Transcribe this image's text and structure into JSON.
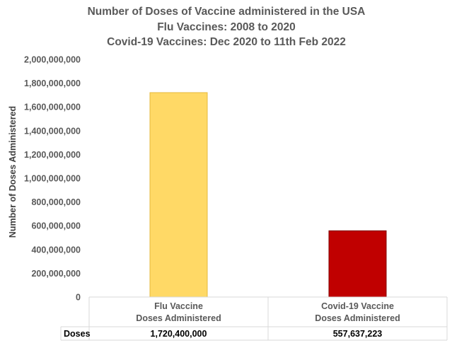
{
  "chart_data": {
    "type": "bar",
    "title_lines": [
      "Number of Doses of Vaccine administered in the USA",
      "Flu Vaccines: 2008 to 2020",
      "Covid-19 Vaccines: Dec 2020 to 11th Feb 2022"
    ],
    "ylabel": "Number of Doses Administered",
    "xlabel": "",
    "ylim": [
      0,
      2000000000
    ],
    "yticks": [
      0,
      200000000,
      400000000,
      600000000,
      800000000,
      1000000000,
      1200000000,
      1400000000,
      1600000000,
      1800000000,
      2000000000
    ],
    "ytick_labels": [
      "0",
      "200,000,000",
      "400,000,000",
      "600,000,000",
      "800,000,000",
      "1,000,000,000",
      "1,200,000,000",
      "1,400,000,000",
      "1,600,000,000",
      "1,800,000,000",
      "2,000,000,000"
    ],
    "categories": [
      [
        "Flu Vaccine",
        "Doses Administered"
      ],
      [
        "Covid-19 Vaccine",
        "Doses Administered"
      ]
    ],
    "series": [
      {
        "name": "Doses",
        "values": [
          1720400000,
          557637223
        ],
        "value_labels": [
          "1,720,400,000",
          "557,637,223"
        ],
        "colors": [
          "#FFD966",
          "#C00000"
        ],
        "edge_colors": [
          "#E6B93C",
          "#7F0000"
        ]
      }
    ],
    "data_table": true,
    "grid": false
  }
}
